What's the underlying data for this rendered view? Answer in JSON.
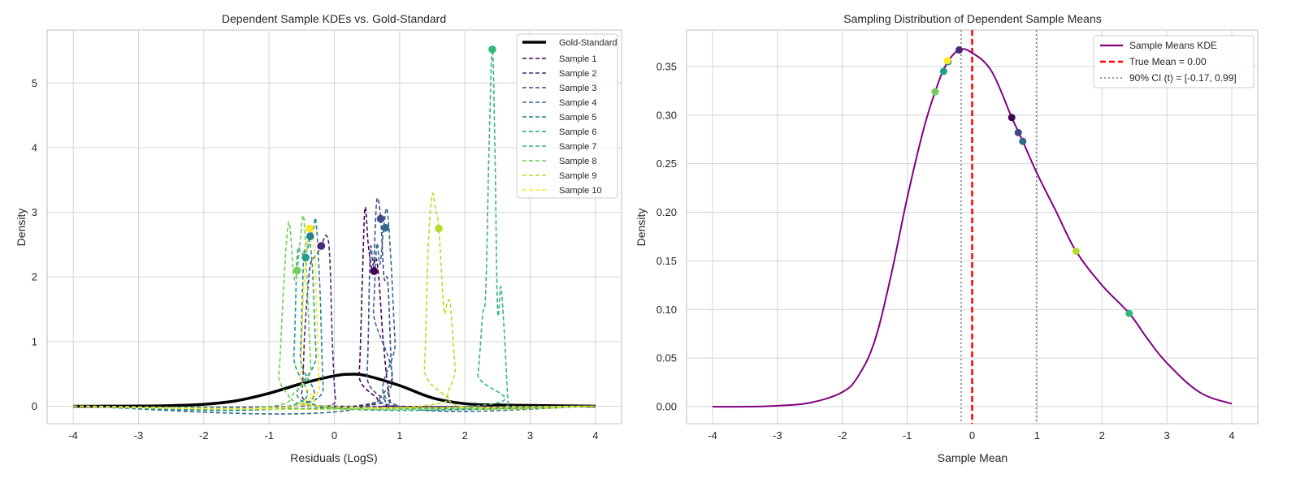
{
  "chart_data": [
    {
      "type": "line",
      "title": "Dependent Sample KDEs vs. Gold-Standard",
      "xlabel": "Residuals (LogS)",
      "ylabel": "Density",
      "xlim": [
        -4.4,
        4.4
      ],
      "ylim": [
        -0.27,
        5.82
      ],
      "xticks": [
        "-4",
        "-3",
        "-2",
        "-1",
        "0",
        "1",
        "2",
        "3",
        "4"
      ],
      "yticks": [
        "0",
        "1",
        "2",
        "3",
        "4",
        "5"
      ],
      "grid": true,
      "legend_position": "top-right",
      "gold_standard": {
        "name": "Gold-Standard",
        "color": "#000000",
        "points": [
          [
            -4,
            0
          ],
          [
            -3.5,
            0.001
          ],
          [
            -3,
            0.003
          ],
          [
            -2.5,
            0.01
          ],
          [
            -2,
            0.03
          ],
          [
            -1.5,
            0.085
          ],
          [
            -1,
            0.2
          ],
          [
            -0.5,
            0.35
          ],
          [
            0,
            0.47
          ],
          [
            0.25,
            0.495
          ],
          [
            0.5,
            0.47
          ],
          [
            1,
            0.32
          ],
          [
            1.5,
            0.13
          ],
          [
            2,
            0.04
          ],
          [
            2.5,
            0.02
          ],
          [
            3,
            0.012
          ],
          [
            3.5,
            0.006
          ],
          [
            4,
            0.002
          ]
        ]
      },
      "series": [
        {
          "name": "Sample 1",
          "color": "#440154",
          "mean": 0.61,
          "mean_density": 2.09,
          "points": [
            [
              -4,
              0
            ],
            [
              0.3,
              0
            ],
            [
              0.38,
              0.5
            ],
            [
              0.43,
              2.0
            ],
            [
              0.47,
              3.07
            ],
            [
              0.52,
              2.5
            ],
            [
              0.58,
              2.1
            ],
            [
              0.63,
              2.3
            ],
            [
              0.68,
              2.0
            ],
            [
              0.75,
              1.0
            ],
            [
              0.85,
              0.1
            ],
            [
              0.95,
              0
            ],
            [
              4,
              0
            ]
          ]
        },
        {
          "name": "Sample 2",
          "color": "#482878",
          "mean": -0.2,
          "mean_density": 2.48,
          "points": [
            [
              -4,
              0
            ],
            [
              -0.6,
              0
            ],
            [
              -0.5,
              0.2
            ],
            [
              -0.45,
              1.2
            ],
            [
              -0.38,
              2.1
            ],
            [
              -0.33,
              2.27
            ],
            [
              -0.27,
              2.35
            ],
            [
              -0.2,
              2.48
            ],
            [
              -0.12,
              2.64
            ],
            [
              -0.07,
              2.3
            ],
            [
              -0.03,
              1.0
            ],
            [
              0.02,
              0.1
            ],
            [
              0.1,
              0
            ],
            [
              4,
              0
            ]
          ]
        },
        {
          "name": "Sample 3",
          "color": "#3e4989",
          "mean": 0.71,
          "mean_density": 2.9,
          "points": [
            [
              -4,
              0
            ],
            [
              0.4,
              0
            ],
            [
              0.5,
              0.5
            ],
            [
              0.55,
              2.4
            ],
            [
              0.6,
              2.2
            ],
            [
              0.65,
              3.18
            ],
            [
              0.71,
              2.9
            ],
            [
              0.76,
              2.0
            ],
            [
              0.82,
              1.9
            ],
            [
              0.88,
              0.5
            ],
            [
              0.95,
              0
            ],
            [
              4,
              0
            ]
          ]
        },
        {
          "name": "Sample 4",
          "color": "#31688e",
          "mean": 0.78,
          "mean_density": 2.76,
          "points": [
            [
              -4,
              0
            ],
            [
              0.5,
              0
            ],
            [
              0.6,
              1.5
            ],
            [
              0.65,
              2.5
            ],
            [
              0.7,
              2.2
            ],
            [
              0.76,
              2.8
            ],
            [
              0.81,
              3.03
            ],
            [
              0.87,
              2.2
            ],
            [
              0.93,
              1.0
            ],
            [
              1.0,
              0
            ],
            [
              4,
              0
            ]
          ]
        },
        {
          "name": "Sample 5",
          "color": "#26828e",
          "mean": -0.37,
          "mean_density": 2.63,
          "points": [
            [
              -4,
              0
            ],
            [
              -0.6,
              0
            ],
            [
              -0.52,
              0.8
            ],
            [
              -0.47,
              2.3
            ],
            [
              -0.42,
              2.4
            ],
            [
              -0.37,
              2.63
            ],
            [
              -0.32,
              2.75
            ],
            [
              -0.28,
              2.85
            ],
            [
              -0.22,
              1.8
            ],
            [
              -0.17,
              0.3
            ],
            [
              -0.1,
              0
            ],
            [
              4,
              0
            ]
          ]
        },
        {
          "name": "Sample 6",
          "color": "#1f9e89",
          "mean": -0.44,
          "mean_density": 2.3,
          "points": [
            [
              -4,
              0
            ],
            [
              -0.7,
              0
            ],
            [
              -0.62,
              0.8
            ],
            [
              -0.57,
              2.3
            ],
            [
              -0.52,
              2.4
            ],
            [
              -0.44,
              2.3
            ],
            [
              -0.4,
              2.6
            ],
            [
              -0.34,
              2.2
            ],
            [
              -0.28,
              0.8
            ],
            [
              -0.22,
              0
            ],
            [
              4,
              0
            ]
          ]
        },
        {
          "name": "Sample 7",
          "color": "#35b779",
          "mean": 2.42,
          "mean_density": 5.52,
          "points": [
            [
              -4,
              0
            ],
            [
              2.1,
              0
            ],
            [
              2.2,
              0.5
            ],
            [
              2.27,
              1.4
            ],
            [
              2.32,
              1.8
            ],
            [
              2.37,
              4.0
            ],
            [
              2.42,
              5.52
            ],
            [
              2.46,
              4.0
            ],
            [
              2.5,
              1.5
            ],
            [
              2.55,
              1.85
            ],
            [
              2.6,
              1.2
            ],
            [
              2.66,
              0.1
            ],
            [
              2.7,
              0
            ],
            [
              4,
              0
            ]
          ]
        },
        {
          "name": "Sample 8",
          "color": "#6ece58",
          "mean": -0.57,
          "mean_density": 2.1,
          "points": [
            [
              -4,
              0
            ],
            [
              -0.95,
              0
            ],
            [
              -0.85,
              0.5
            ],
            [
              -0.78,
              1.8
            ],
            [
              -0.72,
              2.7
            ],
            [
              -0.68,
              2.77
            ],
            [
              -0.62,
              2.0
            ],
            [
              -0.57,
              2.1
            ],
            [
              -0.52,
              2.6
            ],
            [
              -0.47,
              2.93
            ],
            [
              -0.42,
              2.0
            ],
            [
              -0.36,
              0.6
            ],
            [
              -0.3,
              0
            ],
            [
              4,
              0
            ]
          ]
        },
        {
          "name": "Sample 9",
          "color": "#b5de2b",
          "mean": 1.6,
          "mean_density": 2.75,
          "points": [
            [
              -4,
              0
            ],
            [
              1.3,
              0
            ],
            [
              1.38,
              0.6
            ],
            [
              1.44,
              2.5
            ],
            [
              1.5,
              3.27
            ],
            [
              1.55,
              3.05
            ],
            [
              1.6,
              2.75
            ],
            [
              1.68,
              1.5
            ],
            [
              1.73,
              1.6
            ],
            [
              1.78,
              1.55
            ],
            [
              1.85,
              0.6
            ],
            [
              1.92,
              0
            ],
            [
              4,
              0
            ]
          ]
        },
        {
          "name": "Sample 10",
          "color": "#fde725",
          "mean": -0.38,
          "mean_density": 2.75,
          "points": [
            [
              -4,
              0
            ],
            [
              -0.6,
              0
            ],
            [
              -0.52,
              0.5
            ],
            [
              -0.47,
              1.8
            ],
            [
              -0.42,
              2.5
            ],
            [
              -0.38,
              2.75
            ],
            [
              -0.31,
              2.5
            ],
            [
              -0.27,
              1.5
            ],
            [
              -0.23,
              0.3
            ],
            [
              -0.18,
              0
            ],
            [
              4,
              0
            ]
          ]
        }
      ]
    },
    {
      "type": "line",
      "title": "Sampling Distribution of Dependent Sample Means",
      "xlabel": "Sample Mean",
      "ylabel": "Density",
      "xlim": [
        -4.4,
        4.4
      ],
      "ylim": [
        -0.0175,
        0.3875
      ],
      "xticks": [
        "-4",
        "-3",
        "-2",
        "-1",
        "0",
        "1",
        "2",
        "3",
        "4"
      ],
      "yticks": [
        "0.00",
        "0.05",
        "0.10",
        "0.15",
        "0.20",
        "0.25",
        "0.30",
        "0.35"
      ],
      "grid": true,
      "legend_position": "top-right",
      "kde": {
        "name": "Sample Means KDE",
        "color": "#800080",
        "points": [
          [
            -4,
            0
          ],
          [
            -3.5,
            0
          ],
          [
            -3,
            0.001
          ],
          [
            -2.5,
            0.004
          ],
          [
            -2,
            0.015
          ],
          [
            -1.75,
            0.032
          ],
          [
            -1.5,
            0.068
          ],
          [
            -1.25,
            0.135
          ],
          [
            -1,
            0.215
          ],
          [
            -0.75,
            0.285
          ],
          [
            -0.57,
            0.324
          ],
          [
            -0.4,
            0.352
          ],
          [
            -0.2,
            0.367
          ],
          [
            0,
            0.364
          ],
          [
            0.3,
            0.345
          ],
          [
            0.61,
            0.2975
          ],
          [
            0.78,
            0.273
          ],
          [
            1,
            0.24
          ],
          [
            1.3,
            0.2
          ],
          [
            1.6,
            0.16
          ],
          [
            2,
            0.125
          ],
          [
            2.42,
            0.096
          ],
          [
            2.7,
            0.07
          ],
          [
            3,
            0.045
          ],
          [
            3.5,
            0.015
          ],
          [
            4,
            0.003
          ]
        ]
      },
      "points": [
        {
          "x": 0.61,
          "y": 0.2975,
          "color": "#440154"
        },
        {
          "x": -0.2,
          "y": 0.367,
          "color": "#482878"
        },
        {
          "x": 0.71,
          "y": 0.282,
          "color": "#3e4989"
        },
        {
          "x": 0.78,
          "y": 0.273,
          "color": "#31688e"
        },
        {
          "x": -0.37,
          "y": 0.355,
          "color": "#26828e"
        },
        {
          "x": -0.44,
          "y": 0.345,
          "color": "#1f9e89"
        },
        {
          "x": 2.42,
          "y": 0.096,
          "color": "#35b779"
        },
        {
          "x": -0.57,
          "y": 0.324,
          "color": "#6ece58"
        },
        {
          "x": 1.6,
          "y": 0.16,
          "color": "#b5de2b"
        },
        {
          "x": -0.38,
          "y": 0.356,
          "color": "#fde725"
        }
      ],
      "true_mean": {
        "label": "True Mean = 0.00",
        "value": 0.0,
        "color": "#ff0000"
      },
      "ci": {
        "label": "90% CI (t) = [-0.17, 0.99]",
        "low": -0.17,
        "high": 0.99,
        "color": "#808080"
      }
    }
  ]
}
